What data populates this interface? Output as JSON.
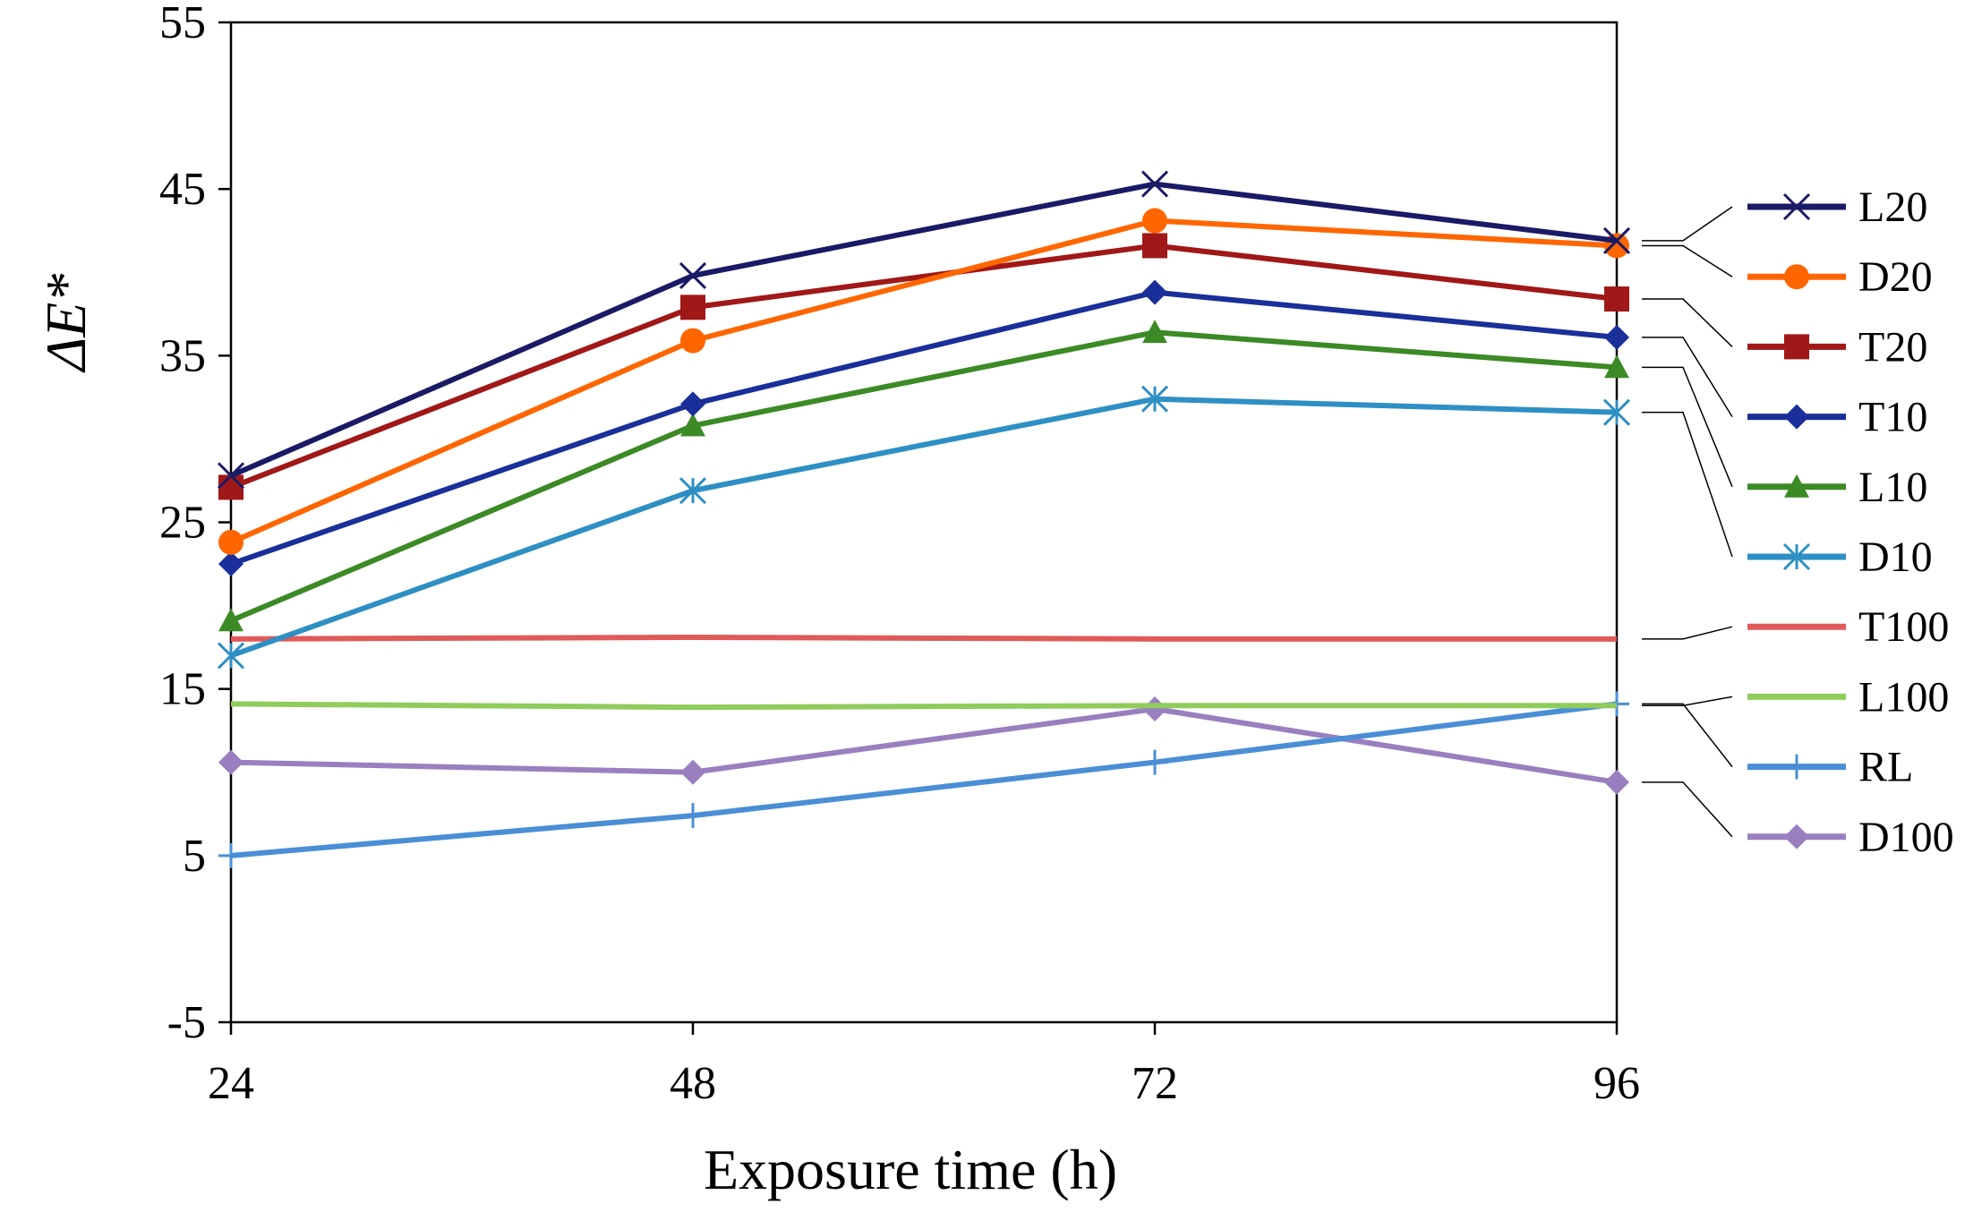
{
  "chart_data": {
    "type": "line",
    "xlabel": "Exposure time (h)",
    "ylabel": "ΔE*",
    "x": [
      24,
      48,
      72,
      96
    ],
    "ylim": [
      -5,
      55
    ],
    "yticks": [
      -5,
      5,
      15,
      25,
      35,
      45,
      55
    ],
    "grid": false,
    "legend_position": "right",
    "series": [
      {
        "name": "L20",
        "values": [
          27.8,
          39.8,
          45.3,
          41.9
        ],
        "color": "#1a1a66",
        "marker": "x"
      },
      {
        "name": "D20",
        "values": [
          23.8,
          35.9,
          43.1,
          41.6
        ],
        "color": "#ff6600",
        "marker": "circle"
      },
      {
        "name": "T20",
        "values": [
          27.1,
          37.9,
          41.6,
          38.4
        ],
        "color": "#a01818",
        "marker": "square"
      },
      {
        "name": "T10",
        "values": [
          22.5,
          32.1,
          38.8,
          36.1
        ],
        "color": "#1a2f99",
        "marker": "diamond"
      },
      {
        "name": "L10",
        "values": [
          19.1,
          30.8,
          36.4,
          34.3
        ],
        "color": "#3c8a26",
        "marker": "triangle"
      },
      {
        "name": "D10",
        "values": [
          17.0,
          26.9,
          32.4,
          31.6
        ],
        "color": "#2e8fc4",
        "marker": "asterisk"
      },
      {
        "name": "T100",
        "values": [
          18.0,
          18.1,
          18.0,
          18.0
        ],
        "color": "#e05a5a",
        "marker": "none"
      },
      {
        "name": "L100",
        "values": [
          14.1,
          13.9,
          14.0,
          14.0
        ],
        "color": "#8fcc5c",
        "marker": "none"
      },
      {
        "name": "RL",
        "values": [
          5.0,
          7.4,
          10.6,
          14.1
        ],
        "color": "#4a8fd6",
        "marker": "plus"
      },
      {
        "name": "D100",
        "values": [
          10.6,
          10.0,
          13.8,
          9.4
        ],
        "color": "#9a7fc0",
        "marker": "diamond"
      }
    ]
  }
}
